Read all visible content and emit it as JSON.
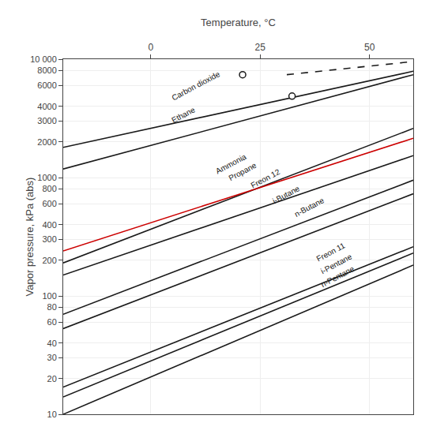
{
  "chart_data": {
    "type": "line",
    "xlabel": "Temperature, °C",
    "ylabel": "Vapor pressure, kPa (abs)",
    "log": "y",
    "grid": true,
    "xlim": [
      -20,
      60
    ],
    "xticks": [
      0,
      25,
      50
    ],
    "ylim": [
      10,
      10000
    ],
    "yticks": [
      10,
      20,
      30,
      40,
      60,
      80,
      100,
      200,
      300,
      400,
      600,
      800,
      1000,
      2000,
      3000,
      4000,
      6000,
      8000,
      {
        "value": 10000,
        "label": "10 000"
      }
    ],
    "series": [
      {
        "x": [
          -20,
          60
        ],
        "values": [
          1798.9,
          7906.8
        ],
        "color": "#1a1a1a",
        "line_style": "solid"
      },
      {
        "x": [
          31.1,
          60
        ],
        "values": [
          7396.1,
          9549.9
        ],
        "color": "#1a1a1a",
        "line_style": "dashed"
      },
      {
        "x": [
          -20,
          60
        ],
        "values": [
          1180.3,
          7396.1
        ],
        "color": "#1a1a1a",
        "line_style": "solid"
      },
      {
        "x": [
          -20,
          60
        ],
        "values": [
          190.11,
          2600.2
        ],
        "color": "#1a1a1a",
        "line_style": "solid"
      },
      {
        "x": [
          -20,
          60
        ],
        "values": [
          239.88,
          2147.8
        ],
        "color": "#cc0000",
        "line_style": "solid"
      },
      {
        "x": [
          -20,
          60
        ],
        "values": [
          149.97,
          1531.1
        ],
        "color": "#1a1a1a",
        "line_style": "solid"
      },
      {
        "x": [
          -20,
          60
        ],
        "values": [
          69.984,
          950.6
        ],
        "color": "#1a1a1a",
        "line_style": "solid"
      },
      {
        "x": [
          -20,
          60
        ],
        "values": [
          52.966,
          729.46
        ],
        "color": "#1a1a1a",
        "line_style": "solid"
      },
      {
        "x": [
          -20,
          60
        ],
        "values": [
          16.982,
          260.02
        ],
        "color": "#1a1a1a",
        "line_style": "solid"
      },
      {
        "x": [
          -20,
          60
        ],
        "values": [
          13.996,
          230.14
        ],
        "color": "#1a1a1a",
        "line_style": "solid"
      },
      {
        "x": [
          -20,
          60
        ],
        "values": [
          10,
          181.97
        ],
        "color": "#1a1a1a",
        "line_style": "solid"
      },
      {
        "type": "scatter",
        "x": [
          21.0,
          32.3
        ],
        "values": [
          7396.1,
          4875.3
        ],
        "color": "#1a1a1a",
        "marker": "circle"
      }
    ],
    "annotations": [
      {
        "text": "Carbon dioxide",
        "x": 4,
        "y": 4168.7
      },
      {
        "text": "Ethane",
        "x": 4,
        "y": 2691.5
      },
      {
        "text": "Ammonia",
        "x": 14,
        "y": 1000
      },
      {
        "text": "Propane",
        "x": 17,
        "y": 870.96
      },
      {
        "text": "Freon 12",
        "x": 22,
        "y": 749.89
      },
      {
        "text": "i-Butane",
        "x": 27,
        "y": 562.34
      },
      {
        "text": "n-Butane",
        "x": 32,
        "y": 431.52
      },
      {
        "text": "Freon 11",
        "x": 37,
        "y": 179.89
      },
      {
        "text": "i-Pentane",
        "x": 38,
        "y": 142.89
      },
      {
        "text": "n-Pentane",
        "x": 38,
        "y": 109.65
      }
    ]
  }
}
